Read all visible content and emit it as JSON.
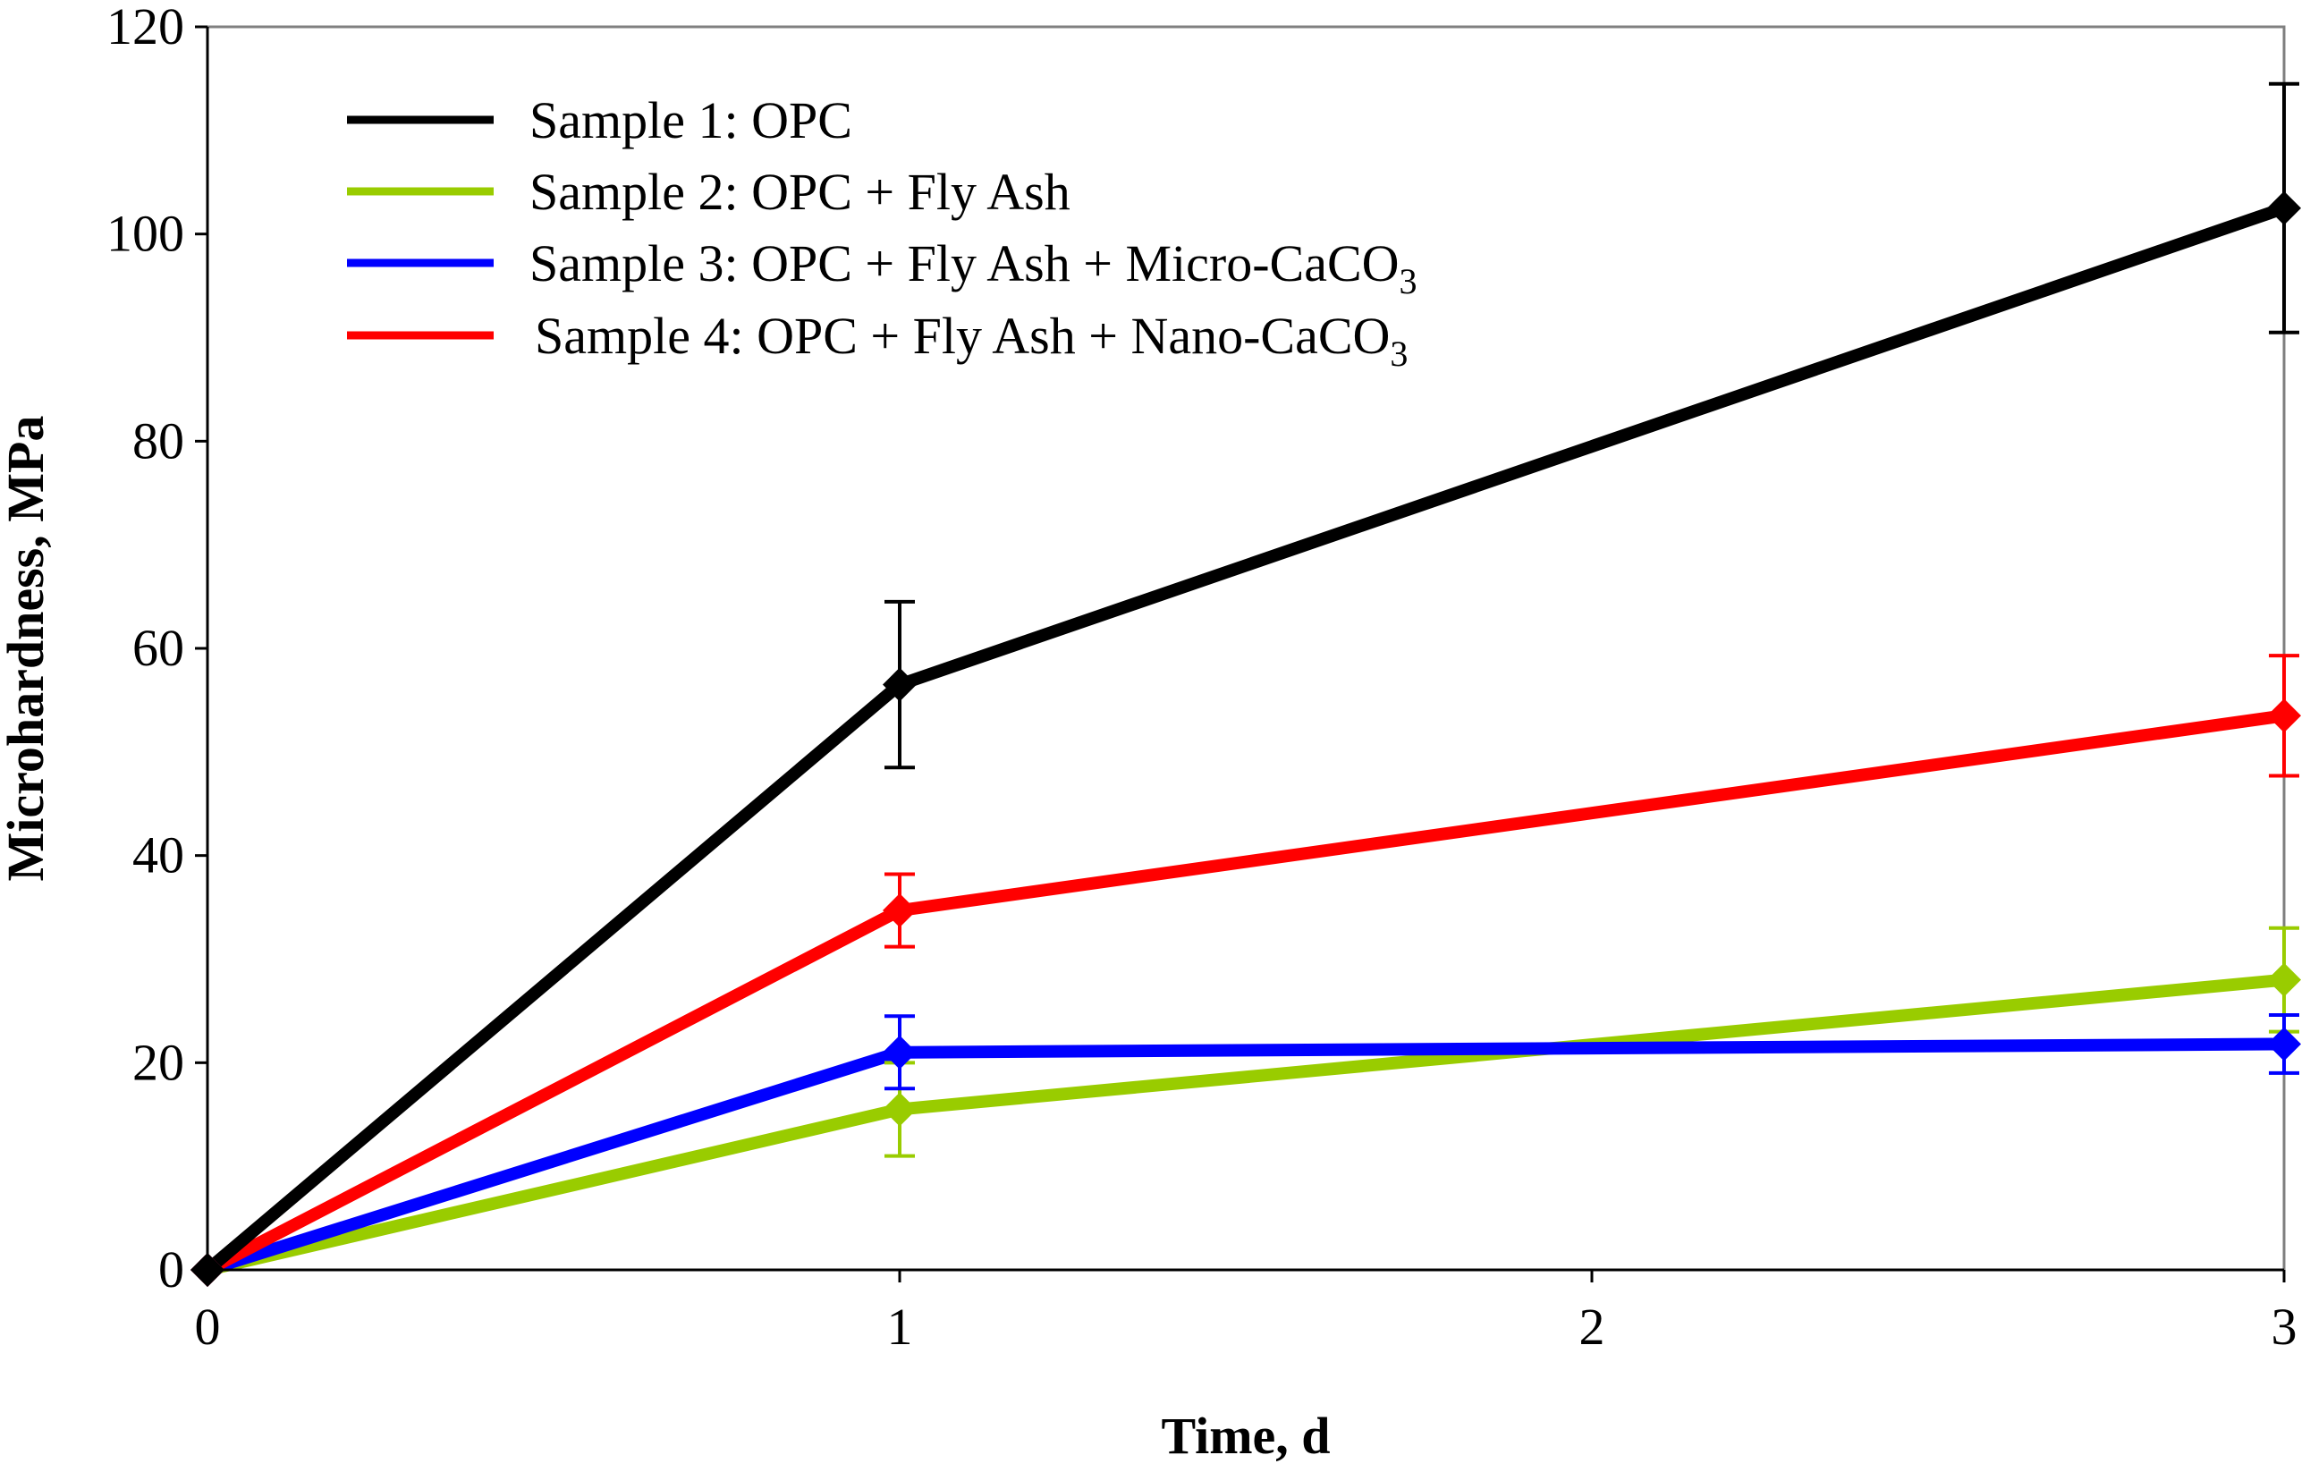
{
  "chart_data": {
    "type": "line",
    "title": "",
    "xlabel": "Time, d",
    "ylabel": "Microhardness, MPa",
    "xlim": [
      0,
      3
    ],
    "ylim": [
      0,
      120
    ],
    "xticks": [
      0,
      1,
      2,
      3
    ],
    "yticks": [
      0,
      20,
      40,
      60,
      80,
      100,
      120
    ],
    "x": [
      0,
      1,
      3
    ],
    "grid": false,
    "legend_position": "top-left",
    "series": [
      {
        "name": "Sample 1: OPC",
        "legend": {
          "main": "Sample 1: OPC",
          "sub": "",
          "tail": ""
        },
        "color": "#000000",
        "x": [
          0,
          1,
          3
        ],
        "values": [
          0,
          56.5,
          102.5
        ],
        "error": [
          0,
          8,
          12
        ]
      },
      {
        "name": "Sample 2: OPC + Fly Ash",
        "legend": {
          "main": "Sample 2: OPC + Fly Ash",
          "sub": "",
          "tail": ""
        },
        "color": "#99CC00",
        "x": [
          0,
          1,
          3
        ],
        "values": [
          0,
          15.5,
          28
        ],
        "error": [
          0,
          4.5,
          5
        ]
      },
      {
        "name": "Sample 3: OPC + Fly Ash + Micro-CaCO3",
        "legend": {
          "main": "Sample 3: OPC + Fly Ash + Micro-CaCO",
          "sub": "3",
          "tail": ""
        },
        "color": "#0000FF",
        "x": [
          0,
          1,
          3
        ],
        "values": [
          0,
          21,
          21.8
        ],
        "error": [
          0,
          3.5,
          2.8
        ]
      },
      {
        "name": "Sample 4: OPC + Fly Ash + Nano-CaCO3",
        "legend": {
          "main": "Sample 4: OPC + Fly Ash + Nano-CaCO",
          "sub": "3",
          "tail": ""
        },
        "color": "#FF0000",
        "x": [
          0,
          1,
          3
        ],
        "values": [
          0,
          34.7,
          53.5
        ],
        "error": [
          0,
          3.5,
          5.8
        ]
      }
    ]
  }
}
